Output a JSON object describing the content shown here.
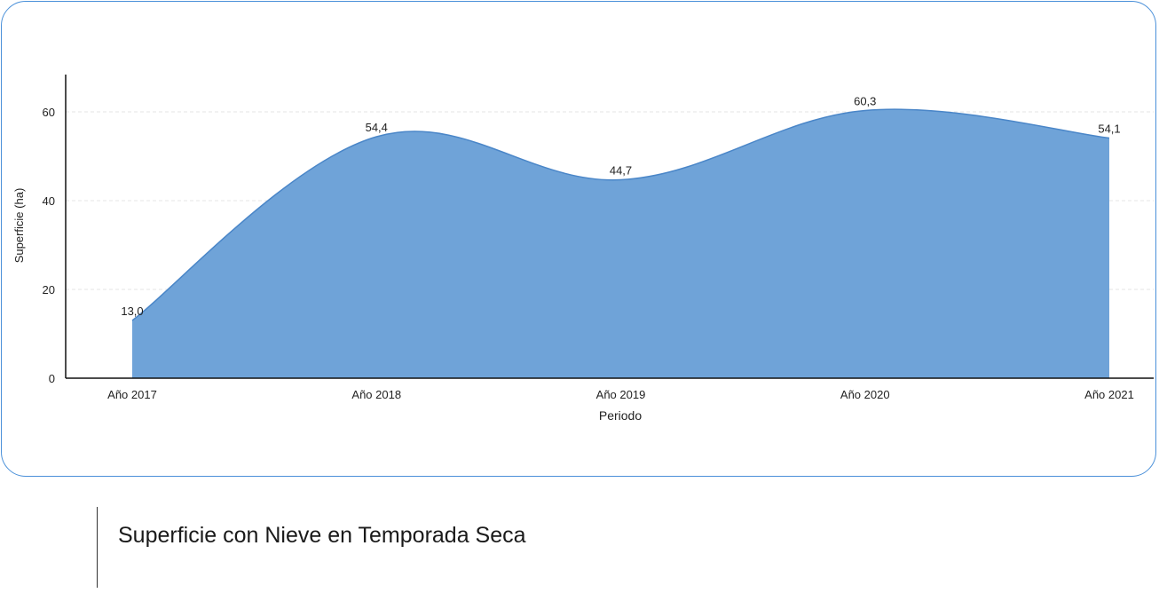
{
  "caption": "Superficie con Nieve en Temporada Seca",
  "colors": {
    "area_fill": "#6fa3d8",
    "area_stroke": "#4a86c8",
    "card_border": "#4a90d9",
    "grid": "#e6e6e6",
    "axis": "#111111"
  },
  "chart_data": {
    "type": "area",
    "categories": [
      "Año 2017",
      "Año 2018",
      "Año 2019",
      "Año 2020",
      "Año 2021"
    ],
    "values": [
      13.0,
      54.4,
      44.7,
      60.3,
      54.1
    ],
    "data_labels": [
      "13,0",
      "54,4",
      "44,7",
      "60,3",
      "54,1"
    ],
    "xlabel": "Periodo",
    "ylabel": "Superficie (ha)",
    "ylim": [
      0,
      68
    ],
    "yticks": [
      0,
      20,
      40,
      60
    ],
    "ytick_labels": [
      "0",
      "20",
      "40",
      "60"
    ],
    "grid": true,
    "smooth": true
  }
}
